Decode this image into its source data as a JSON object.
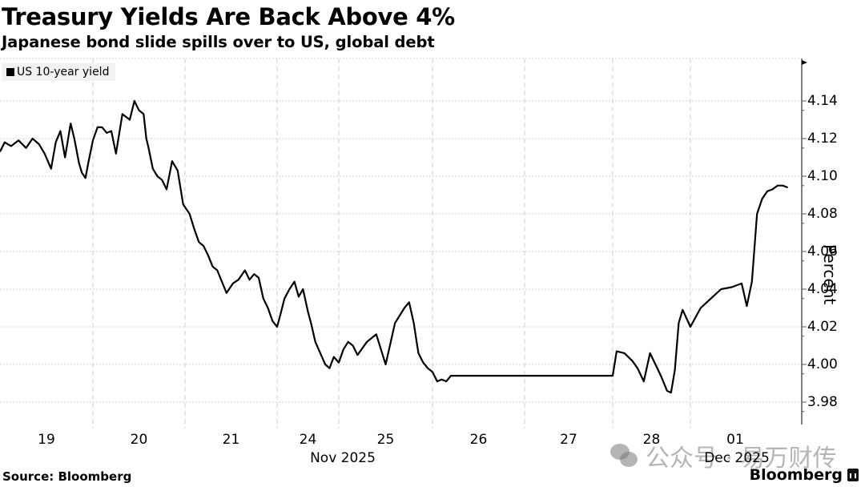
{
  "header": {
    "title": "Treasury Yields Are Back Above 4%",
    "subtitle": "Japanese bond slide spills over to US, global debt"
  },
  "legend": {
    "label": "US 10-year yield",
    "swatch_color": "#000000"
  },
  "footer": {
    "source": "Source: Bloomberg",
    "brand": "Bloomberg"
  },
  "watermark": {
    "text": "公众号 · 易万财传",
    "icon": "wechat-icon"
  },
  "axis": {
    "y_title": "Percent",
    "y_ticks": [
      "4.14",
      "4.12",
      "4.10",
      "4.08",
      "4.06",
      "4.04",
      "4.02",
      "4.00",
      "3.98"
    ],
    "x_ticks": [
      "19",
      "20",
      "21",
      "24",
      "25",
      "26",
      "27",
      "28",
      "01"
    ],
    "x_groups": [
      "Nov 2025",
      "Dec 2025"
    ]
  },
  "chart_data": {
    "type": "line",
    "title": "Treasury Yields Are Back Above 4%",
    "subtitle": "Japanese bond slide spills over to US, global debt",
    "xlabel": "",
    "ylabel": "Percent",
    "ylim": [
      3.97,
      4.156
    ],
    "grid": true,
    "legend_position": "top-left",
    "categories": [
      "Nov 19",
      "Nov 20",
      "Nov 21",
      "Nov 24",
      "Nov 25",
      "Nov 26",
      "Nov 27",
      "Nov 28",
      "Dec 01"
    ],
    "series": [
      {
        "name": "US 10-year yield",
        "color": "#000000",
        "points_note": "x is fractional trading-day index (0 = start of Nov 19, 9 = end of Dec 01 session shown)",
        "x": [
          0.0,
          0.05,
          0.12,
          0.2,
          0.28,
          0.35,
          0.42,
          0.48,
          0.55,
          0.6,
          0.65,
          0.7,
          0.76,
          0.8,
          0.85,
          0.88,
          0.92,
          0.95,
          1.0,
          1.05,
          1.1,
          1.15,
          1.2,
          1.25,
          1.32,
          1.4,
          1.45,
          1.5,
          1.55,
          1.58,
          1.6,
          1.65,
          1.7,
          1.75,
          1.8,
          1.86,
          1.92,
          1.98,
          2.05,
          2.1,
          2.15,
          2.2,
          2.25,
          2.3,
          2.35,
          2.4,
          2.45,
          2.52,
          2.58,
          2.65,
          2.7,
          2.75,
          2.8,
          2.85,
          2.9,
          2.95,
          3.0,
          3.05,
          3.12,
          3.2,
          3.28,
          3.35,
          3.42,
          3.5,
          3.55,
          3.62,
          3.7,
          3.78,
          3.85,
          3.92,
          4.0,
          4.05,
          4.1,
          4.15,
          4.2,
          4.3,
          4.4,
          4.5,
          4.6,
          4.7,
          4.75,
          4.8,
          4.85,
          4.9,
          4.95,
          5.0,
          5.05,
          5.1,
          5.15,
          5.2,
          5.3,
          5.4,
          5.5,
          5.6,
          5.7,
          5.8,
          5.9,
          6.0,
          6.5,
          7.0,
          7.05,
          7.15,
          7.25,
          7.32,
          7.4,
          7.48,
          7.55,
          7.62,
          7.7,
          7.75,
          7.8,
          7.85,
          7.9,
          8.0,
          8.1,
          8.2,
          8.3,
          8.4,
          8.5,
          8.55,
          8.6,
          8.65,
          8.7,
          8.75,
          8.8,
          8.85,
          8.9,
          8.95
        ],
        "values": [
          4.113,
          4.118,
          4.116,
          4.119,
          4.115,
          4.12,
          4.117,
          4.112,
          4.104,
          4.118,
          4.124,
          4.11,
          4.128,
          4.12,
          4.107,
          4.102,
          4.099,
          4.107,
          4.119,
          4.126,
          4.126,
          4.123,
          4.124,
          4.112,
          4.133,
          4.13,
          4.14,
          4.135,
          4.133,
          4.12,
          4.116,
          4.104,
          4.1,
          4.098,
          4.093,
          4.108,
          4.103,
          4.085,
          4.08,
          4.072,
          4.065,
          4.063,
          4.058,
          4.052,
          4.05,
          4.044,
          4.038,
          4.043,
          4.045,
          4.05,
          4.045,
          4.048,
          4.046,
          4.035,
          4.03,
          4.023,
          4.02,
          4.026,
          4.035,
          4.04,
          4.044,
          4.036,
          4.04,
          4.028,
          4.022,
          4.012,
          4.006,
          4.0,
          3.998,
          4.004,
          4.001,
          4.008,
          4.012,
          4.01,
          4.005,
          4.012,
          4.016,
          4.0,
          4.022,
          4.03,
          4.033,
          4.022,
          4.006,
          4.001,
          3.998,
          3.996,
          3.991,
          3.992,
          3.991,
          3.994,
          3.994,
          3.994,
          3.994,
          3.994,
          3.994,
          3.994,
          3.994,
          3.994,
          3.994,
          3.994,
          4.007,
          4.006,
          4.002,
          3.998,
          3.991,
          4.006,
          4.0,
          3.994,
          3.986,
          3.985,
          3.997,
          4.022,
          4.029,
          4.02,
          4.03,
          4.035,
          4.04,
          4.041,
          4.043,
          4.031,
          4.044,
          4.08,
          4.088,
          4.092,
          4.093,
          4.095,
          4.095,
          4.094
        ]
      }
    ],
    "annotations": [
      "Nov 2025",
      "Dec 2025"
    ]
  }
}
